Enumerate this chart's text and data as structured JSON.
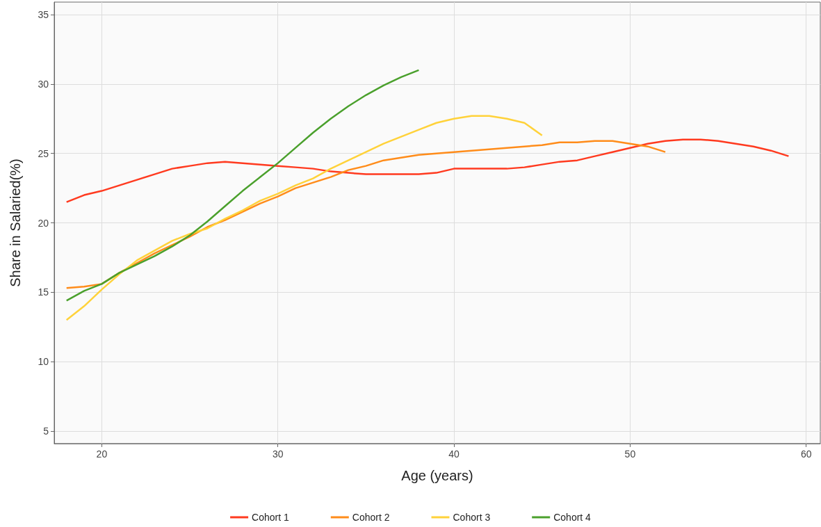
{
  "chart_data": {
    "type": "line",
    "xlabel": "Age (years)",
    "ylabel": "Share in Salaried(%)",
    "xlim": [
      17.3,
      60.8
    ],
    "ylim": [
      4.1,
      35.9
    ],
    "xticks": [
      20,
      30,
      40,
      50,
      60
    ],
    "yticks": [
      5,
      10,
      15,
      20,
      25,
      30,
      35
    ],
    "grid": true,
    "legend": "bottom",
    "marker": "none",
    "line_style": "solid",
    "series": [
      {
        "name": "Cohort 1",
        "color": "#ff3a1f",
        "x": [
          18,
          19,
          20,
          21,
          22,
          23,
          24,
          25,
          26,
          27,
          28,
          29,
          30,
          31,
          32,
          33,
          34,
          35,
          36,
          37,
          38,
          39,
          40,
          41,
          42,
          43,
          44,
          45,
          46,
          47,
          48,
          49,
          50,
          51,
          52,
          53,
          54,
          55,
          56,
          57,
          58,
          59
        ],
        "values": [
          21.5,
          22.0,
          22.3,
          22.7,
          23.1,
          23.5,
          23.9,
          24.1,
          24.3,
          24.4,
          24.3,
          24.2,
          24.1,
          24.0,
          23.9,
          23.7,
          23.6,
          23.5,
          23.5,
          23.5,
          23.5,
          23.6,
          23.9,
          23.9,
          23.9,
          23.9,
          24.0,
          24.2,
          24.4,
          24.5,
          24.8,
          25.1,
          25.4,
          25.7,
          25.9,
          26.0,
          26.0,
          25.9,
          25.7,
          25.5,
          25.2,
          24.8
        ]
      },
      {
        "name": "Cohort 2",
        "color": "#ff8c1a",
        "x": [
          18,
          19,
          20,
          21,
          22,
          23,
          24,
          25,
          26,
          27,
          28,
          29,
          30,
          31,
          32,
          33,
          34,
          35,
          36,
          37,
          38,
          39,
          40,
          41,
          42,
          43,
          44,
          45,
          46,
          47,
          48,
          49,
          50,
          51,
          52
        ],
        "values": [
          15.3,
          15.4,
          15.6,
          16.4,
          17.1,
          17.8,
          18.4,
          19.0,
          19.7,
          20.2,
          20.8,
          21.4,
          21.9,
          22.5,
          22.9,
          23.3,
          23.8,
          24.1,
          24.5,
          24.7,
          24.9,
          25.0,
          25.1,
          25.2,
          25.3,
          25.4,
          25.5,
          25.6,
          25.8,
          25.8,
          25.9,
          25.9,
          25.7,
          25.5,
          25.1
        ]
      },
      {
        "name": "Cohort 3",
        "color": "#ffd23a",
        "x": [
          18,
          19,
          20,
          21,
          22,
          23,
          24,
          25,
          26,
          27,
          28,
          29,
          30,
          31,
          32,
          33,
          34,
          35,
          36,
          37,
          38,
          39,
          40,
          41,
          42,
          43,
          44,
          45
        ],
        "values": [
          13.0,
          14.0,
          15.2,
          16.3,
          17.3,
          18.0,
          18.7,
          19.2,
          19.6,
          20.3,
          20.9,
          21.6,
          22.1,
          22.7,
          23.2,
          23.9,
          24.5,
          25.1,
          25.7,
          26.2,
          26.7,
          27.2,
          27.5,
          27.7,
          27.7,
          27.5,
          27.2,
          26.3
        ]
      },
      {
        "name": "Cohort 4",
        "color": "#4aa02c",
        "x": [
          18,
          19,
          20,
          21,
          22,
          23,
          24,
          25,
          26,
          27,
          28,
          29,
          30,
          31,
          32,
          33,
          34,
          35,
          36,
          37,
          38
        ],
        "values": [
          14.4,
          15.1,
          15.6,
          16.4,
          17.0,
          17.6,
          18.3,
          19.1,
          20.1,
          21.2,
          22.3,
          23.3,
          24.3,
          25.4,
          26.5,
          27.5,
          28.4,
          29.2,
          29.9,
          30.5,
          31.0
        ]
      }
    ]
  }
}
